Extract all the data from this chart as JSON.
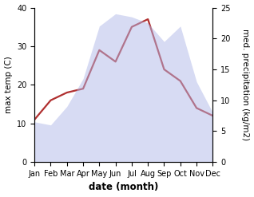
{
  "months": [
    "Jan",
    "Feb",
    "Mar",
    "Apr",
    "May",
    "Jun",
    "Jul",
    "Aug",
    "Sep",
    "Oct",
    "Nov",
    "Dec"
  ],
  "temp": [
    11,
    16,
    18,
    19,
    29,
    26,
    35,
    37,
    24,
    21,
    14,
    12
  ],
  "precip": [
    6.5,
    6.0,
    9.0,
    13.5,
    22.0,
    24.0,
    23.5,
    22.5,
    19.5,
    22.0,
    13.0,
    8.0
  ],
  "temp_color": "#b03030",
  "precip_fill_color": "#b0b8e8",
  "left_ylim": [
    0,
    40
  ],
  "right_ylim": [
    0,
    25
  ],
  "left_yticks": [
    0,
    10,
    20,
    30,
    40
  ],
  "right_yticks": [
    0,
    5,
    10,
    15,
    20,
    25
  ],
  "xlabel": "date (month)",
  "ylabel_left": "max temp (C)",
  "ylabel_right": "med. precipitation (kg/m2)",
  "temp_linewidth": 1.6,
  "xlabel_fontsize": 8.5,
  "ylabel_fontsize": 7.5,
  "tick_fontsize": 7.0,
  "fill_alpha": 0.5
}
